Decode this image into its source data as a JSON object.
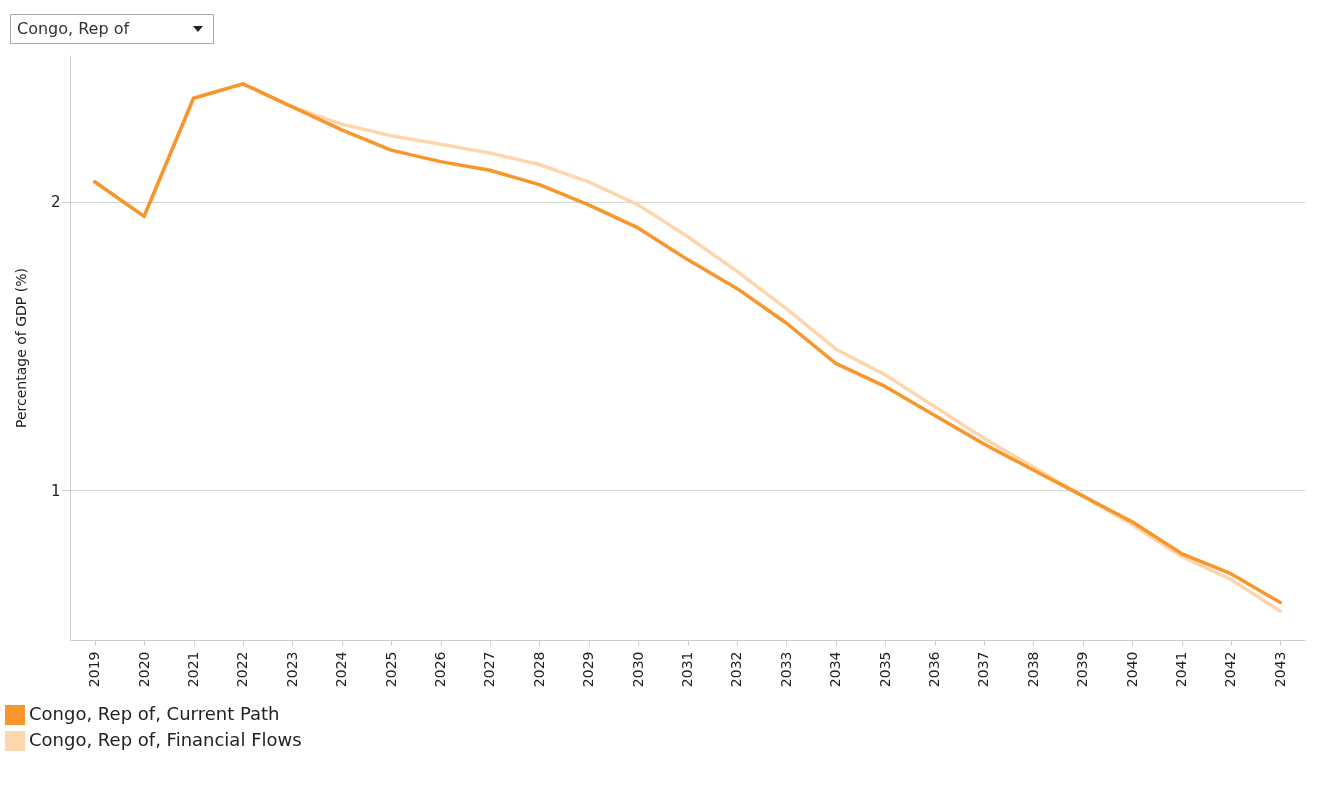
{
  "chart_data": {
    "type": "line",
    "title": "Congo, Rep of",
    "ylabel": "Percentage of GDP (%)",
    "categories": [
      "2019",
      "2020",
      "2021",
      "2022",
      "2023",
      "2024",
      "2025",
      "2026",
      "2027",
      "2028",
      "2029",
      "2030",
      "2031",
      "2032",
      "2033",
      "2034",
      "2035",
      "2036",
      "2037",
      "2038",
      "2039",
      "2040",
      "2041",
      "2042",
      "2043"
    ],
    "series": [
      {
        "name": "Congo, Rep of, Current Path",
        "color": "#f7962d",
        "values": [
          2.07,
          1.95,
          2.36,
          2.41,
          2.33,
          2.25,
          2.18,
          2.14,
          2.11,
          2.06,
          1.99,
          1.91,
          1.8,
          1.7,
          1.58,
          1.44,
          1.36,
          1.26,
          1.16,
          1.07,
          0.98,
          0.89,
          0.78,
          0.71,
          0.61
        ]
      },
      {
        "name": "Congo, Rep of, Financial Flows",
        "color": "#fdd6ad",
        "values": [
          2.07,
          1.95,
          2.36,
          2.41,
          2.33,
          2.27,
          2.23,
          2.2,
          2.17,
          2.13,
          2.07,
          1.99,
          1.88,
          1.76,
          1.63,
          1.49,
          1.4,
          1.29,
          1.18,
          1.08,
          0.98,
          0.88,
          0.77,
          0.69,
          0.58
        ]
      }
    ],
    "ylim": [
      0.48,
      2.51
    ],
    "yticks": [
      1,
      2
    ],
    "grid": "y",
    "legend": "bottom left",
    "marker": "none",
    "line_style": "solid"
  }
}
